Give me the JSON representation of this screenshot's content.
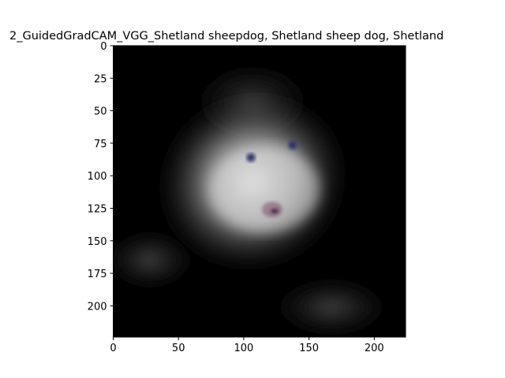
{
  "chart_data": {
    "type": "heatmap",
    "title": "2_GuidedGradCAM_VGG_Shetland sheepdog, Shetland sheep dog, Shetland",
    "xlabel": "",
    "ylabel": "",
    "xlim": [
      0,
      224
    ],
    "ylim": [
      224,
      0
    ],
    "xticks": [
      0,
      50,
      100,
      150,
      200
    ],
    "yticks": [
      0,
      25,
      50,
      75,
      100,
      125,
      150,
      175,
      200
    ],
    "image_size": [
      224,
      224
    ],
    "colormap": "grayscale overlay on image",
    "background": "#000000",
    "highlight_color": "#d8d8d8",
    "eye_color": "#3a3f7a",
    "nose_color": "#7a4a6a"
  }
}
